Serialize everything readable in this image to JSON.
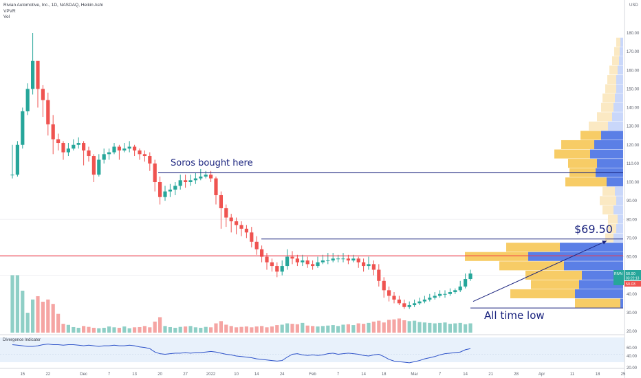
{
  "header": {
    "title": "Rivian Automotive, Inc., 1D, NASDAQ, Heikin Ashi",
    "indicator_1": "VPVR",
    "indicator_2": "Vol",
    "currency": "USD"
  },
  "annotations": {
    "soros": "Soros bought here",
    "target": "$69.50",
    "low": "All time low"
  },
  "price_tags": {
    "symbol": "RIVN",
    "last": "50.90",
    "countdown": "03:22:13",
    "low_tag": "50.03"
  },
  "sub_panel": {
    "title": "Divergence Indicator",
    "ticks": [
      "60.00",
      "40.00",
      "20.00"
    ]
  },
  "colors": {
    "up": "#26a69a",
    "down": "#ef5350",
    "vol_up": "#8fcfc6",
    "vol_down": "#f5a5a3",
    "annotation_blue": "#1a237e",
    "red_line": "#f23645",
    "vpvr_blue_solid": "#5b7fe6",
    "vpvr_yellow_solid": "#f7cc66"
  },
  "chart_data": {
    "type": "candlestick",
    "price_axis": {
      "min": 20,
      "max": 180,
      "ticks": [
        "180.00",
        "170.00",
        "160.00",
        "150.00",
        "140.00",
        "130.00",
        "120.00",
        "110.00",
        "100.00",
        "90.00",
        "80.00",
        "70.00",
        "60.00",
        "50.00",
        "40.00",
        "30.00",
        "20.00"
      ]
    },
    "x_ticks": [
      {
        "label": "15",
        "i": 2
      },
      {
        "label": "22",
        "i": 7
      },
      {
        "label": "Dec",
        "i": 14
      },
      {
        "label": "7",
        "i": 19
      },
      {
        "label": "13",
        "i": 24
      },
      {
        "label": "20",
        "i": 29
      },
      {
        "label": "27",
        "i": 34
      },
      {
        "label": "2022",
        "i": 39
      },
      {
        "label": "10",
        "i": 44
      },
      {
        "label": "14",
        "i": 48
      },
      {
        "label": "24",
        "i": 53
      },
      {
        "label": "Feb",
        "i": 59
      },
      {
        "label": "7",
        "i": 64
      },
      {
        "label": "14",
        "i": 69
      },
      {
        "label": "18",
        "i": 73
      },
      {
        "label": "Mar",
        "i": 79
      },
      {
        "label": "7",
        "i": 84
      },
      {
        "label": "14",
        "i": 89
      },
      {
        "label": "21",
        "i": 94
      },
      {
        "label": "28",
        "i": 99
      },
      {
        "label": "Apr",
        "i": 104
      },
      {
        "label": "11",
        "i": 110
      },
      {
        "label": "18",
        "i": 115
      },
      {
        "label": "25",
        "i": 120
      }
    ],
    "candles": [
      [
        104,
        104,
        120,
        102
      ],
      [
        104,
        120,
        122,
        103
      ],
      [
        120,
        138,
        140,
        118
      ],
      [
        138,
        150,
        153,
        136
      ],
      [
        150,
        165,
        180,
        147
      ],
      [
        165,
        150,
        160,
        140
      ],
      [
        150,
        144,
        152,
        135
      ],
      [
        144,
        131,
        148,
        125
      ],
      [
        131,
        123,
        136,
        115
      ],
      [
        123,
        121,
        126,
        117
      ],
      [
        121,
        116,
        122,
        112
      ],
      [
        116,
        118,
        121,
        114
      ],
      [
        118,
        120,
        123,
        117
      ],
      [
        120,
        121,
        124,
        118
      ],
      [
        121,
        117,
        122,
        109
      ],
      [
        117,
        114,
        119,
        111
      ],
      [
        114,
        104,
        115,
        100
      ],
      [
        104,
        112,
        115,
        103
      ],
      [
        112,
        115,
        118,
        110
      ],
      [
        115,
        116,
        118,
        112
      ],
      [
        116,
        119,
        121,
        115
      ],
      [
        119,
        117,
        120,
        112
      ],
      [
        117,
        118,
        121,
        116
      ],
      [
        118,
        119,
        122,
        116
      ],
      [
        119,
        117,
        120,
        114
      ],
      [
        117,
        115,
        118,
        112
      ],
      [
        115,
        114,
        117,
        111
      ],
      [
        114,
        110,
        116,
        106
      ],
      [
        110,
        100,
        112,
        95
      ],
      [
        100,
        92,
        103,
        88
      ],
      [
        92,
        95,
        98,
        90
      ],
      [
        95,
        96,
        99,
        92
      ],
      [
        96,
        98,
        100,
        93
      ],
      [
        98,
        101,
        104,
        96
      ],
      [
        101,
        100,
        104,
        97
      ],
      [
        100,
        101,
        104,
        98
      ],
      [
        101,
        102,
        105,
        99
      ],
      [
        102,
        103,
        107,
        101
      ],
      [
        103,
        104,
        106,
        102
      ],
      [
        104,
        102,
        106,
        100
      ],
      [
        102,
        93,
        103,
        88
      ],
      [
        93,
        86,
        95,
        75
      ],
      [
        86,
        81,
        88,
        76
      ],
      [
        81,
        79,
        83,
        73
      ],
      [
        79,
        77,
        81,
        72
      ],
      [
        77,
        75,
        79,
        71
      ],
      [
        75,
        73,
        77,
        70
      ],
      [
        73,
        68,
        76,
        65
      ],
      [
        68,
        64,
        71,
        61
      ],
      [
        64,
        60,
        66,
        57
      ],
      [
        60,
        57,
        62,
        53
      ],
      [
        57,
        55,
        59,
        52
      ],
      [
        55,
        52,
        57,
        49
      ],
      [
        52,
        55,
        58,
        50
      ],
      [
        55,
        60,
        64,
        53
      ],
      [
        60,
        59,
        63,
        56
      ],
      [
        59,
        57,
        61,
        55
      ],
      [
        57,
        58,
        61,
        55
      ],
      [
        58,
        56,
        60,
        54
      ],
      [
        56,
        55,
        58,
        53
      ],
      [
        55,
        57,
        60,
        54
      ],
      [
        57,
        58,
        61,
        56
      ],
      [
        58,
        58,
        62,
        56
      ],
      [
        58,
        59,
        62,
        57
      ],
      [
        59,
        59,
        61,
        57
      ],
      [
        59,
        59,
        62,
        57
      ],
      [
        59,
        58,
        61,
        56
      ],
      [
        58,
        59,
        61,
        57
      ],
      [
        59,
        57,
        60,
        54
      ],
      [
        57,
        55,
        59,
        52
      ],
      [
        55,
        56,
        60,
        53
      ],
      [
        56,
        53,
        58,
        50
      ],
      [
        53,
        47,
        56,
        44
      ],
      [
        47,
        42,
        49,
        38
      ],
      [
        42,
        39,
        44,
        36
      ],
      [
        39,
        37,
        41,
        35
      ],
      [
        37,
        35,
        39,
        34
      ],
      [
        35,
        33,
        37,
        32
      ],
      [
        33,
        34,
        36,
        32
      ],
      [
        34,
        35,
        37,
        33
      ],
      [
        35,
        36,
        38,
        34
      ],
      [
        36,
        37,
        39,
        35
      ],
      [
        37,
        38,
        40,
        36
      ],
      [
        38,
        39,
        41,
        37
      ],
      [
        39,
        40,
        42,
        38
      ],
      [
        40,
        40,
        42,
        38
      ],
      [
        40,
        41,
        43,
        39
      ],
      [
        41,
        42,
        43,
        40
      ],
      [
        42,
        44,
        47,
        41
      ],
      [
        44,
        48,
        51,
        43
      ],
      [
        48,
        51,
        53,
        47
      ]
    ],
    "volume": [
      260,
      260,
      190,
      90,
      150,
      165,
      140,
      150,
      130,
      85,
      40,
      35,
      25,
      22,
      30,
      26,
      22,
      20,
      22,
      28,
      24,
      22,
      28,
      20,
      24,
      25,
      30,
      24,
      50,
      70,
      30,
      25,
      22,
      26,
      28,
      30,
      24,
      22,
      26,
      24,
      42,
      52,
      36,
      30,
      24,
      26,
      28,
      24,
      28,
      30,
      24,
      28,
      34,
      36,
      42,
      40,
      38,
      44,
      32,
      30,
      28,
      30,
      32,
      34,
      30,
      36,
      38,
      34,
      42,
      40,
      44,
      50,
      54,
      46,
      58,
      60,
      64,
      56,
      52,
      54,
      48,
      46,
      44,
      42,
      44,
      46,
      40,
      42,
      44,
      38,
      42
    ],
    "vpvr": [
      {
        "price": 175,
        "up": 4,
        "down": 6
      },
      {
        "price": 170,
        "up": 5,
        "down": 8
      },
      {
        "price": 165,
        "up": 6,
        "down": 10
      },
      {
        "price": 160,
        "up": 8,
        "down": 12
      },
      {
        "price": 155,
        "up": 10,
        "down": 13
      },
      {
        "price": 150,
        "up": 10,
        "down": 16
      },
      {
        "price": 145,
        "up": 12,
        "down": 18
      },
      {
        "price": 140,
        "up": 14,
        "down": 18
      },
      {
        "price": 135,
        "up": 16,
        "down": 22
      },
      {
        "price": 130,
        "up": 22,
        "down": 28
      },
      {
        "price": 125,
        "up": 32,
        "down": 30
      },
      {
        "price": 120,
        "up": 42,
        "down": 48
      },
      {
        "price": 115,
        "up": 48,
        "down": 52
      },
      {
        "price": 110,
        "up": 38,
        "down": 42
      },
      {
        "price": 105,
        "up": 40,
        "down": 38
      },
      {
        "price": 100,
        "up": 24,
        "down": 60
      },
      {
        "price": 95,
        "up": 12,
        "down": 18
      },
      {
        "price": 90,
        "up": 10,
        "down": 24
      },
      {
        "price": 85,
        "up": 14,
        "down": 16
      },
      {
        "price": 80,
        "up": 8,
        "down": 14
      },
      {
        "price": 75,
        "up": 10,
        "down": 12
      },
      {
        "price": 70,
        "up": 14,
        "down": 12
      },
      {
        "price": 65,
        "up": 92,
        "down": 78
      },
      {
        "price": 60,
        "up": 138,
        "down": 92
      },
      {
        "price": 55,
        "up": 86,
        "down": 94
      },
      {
        "price": 50,
        "up": 60,
        "down": 82
      },
      {
        "price": 45,
        "up": 64,
        "down": 70
      },
      {
        "price": 40,
        "up": 70,
        "down": 94
      },
      {
        "price": 35,
        "up": 4,
        "down": 66
      }
    ],
    "divergence": [
      57,
      56,
      55,
      54,
      54,
      55,
      57,
      58,
      57,
      57,
      56,
      57,
      57,
      56,
      55,
      56,
      55,
      54,
      55,
      55,
      56,
      55,
      55,
      56,
      55,
      53,
      52,
      50,
      44,
      41,
      40,
      41,
      42,
      42,
      43,
      42,
      43,
      43,
      44,
      45,
      44,
      42,
      40,
      39,
      37,
      36,
      35,
      34,
      32,
      31,
      30,
      29,
      28,
      29,
      35,
      40,
      41,
      39,
      38,
      39,
      38,
      39,
      41,
      42,
      40,
      41,
      42,
      41,
      40,
      38,
      37,
      39,
      40,
      36,
      31,
      28,
      27,
      26,
      25,
      27,
      29,
      32,
      34,
      36,
      39,
      41,
      42,
      43,
      44,
      48,
      50
    ],
    "lines": {
      "soros": {
        "price": 105
      },
      "target": {
        "price": 69.5
      },
      "red_level": {
        "price": 60.5
      },
      "low": {
        "price": 32.5
      }
    }
  }
}
